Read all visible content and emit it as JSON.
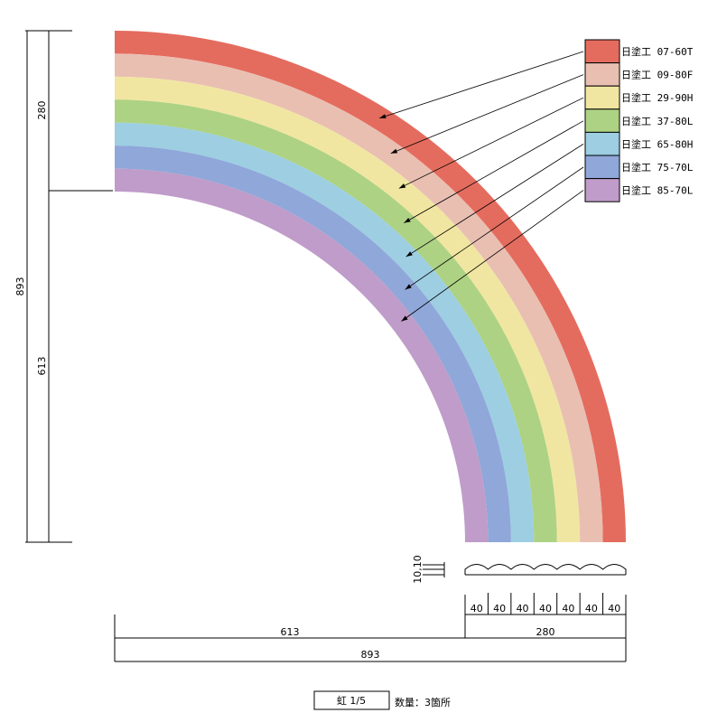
{
  "bands": [
    {
      "color": "#E46C5E",
      "label": "日塗工  07-60T"
    },
    {
      "color": "#E9BFB2",
      "label": "日塗工  09-80F"
    },
    {
      "color": "#F1E6A1",
      "label": "日塗工  29-90H"
    },
    {
      "color": "#ADD283",
      "label": "日塗工  37-80L"
    },
    {
      "color": "#9DCEE2",
      "label": "日塗工  65-80H"
    },
    {
      "color": "#8FA7D9",
      "label": "日塗工  75-70L"
    },
    {
      "color": "#BF9CC9",
      "label": "日塗工  85-70L"
    }
  ],
  "dimensions": {
    "left_total": "893",
    "left_top": "280",
    "left_bottom": "613",
    "bottom_left": "613",
    "bottom_right": "280",
    "bottom_total": "893",
    "band_width": "40",
    "section_depth": "10,10"
  },
  "title": {
    "name": "虹  1/5",
    "quantity": "数量：3箇所"
  }
}
